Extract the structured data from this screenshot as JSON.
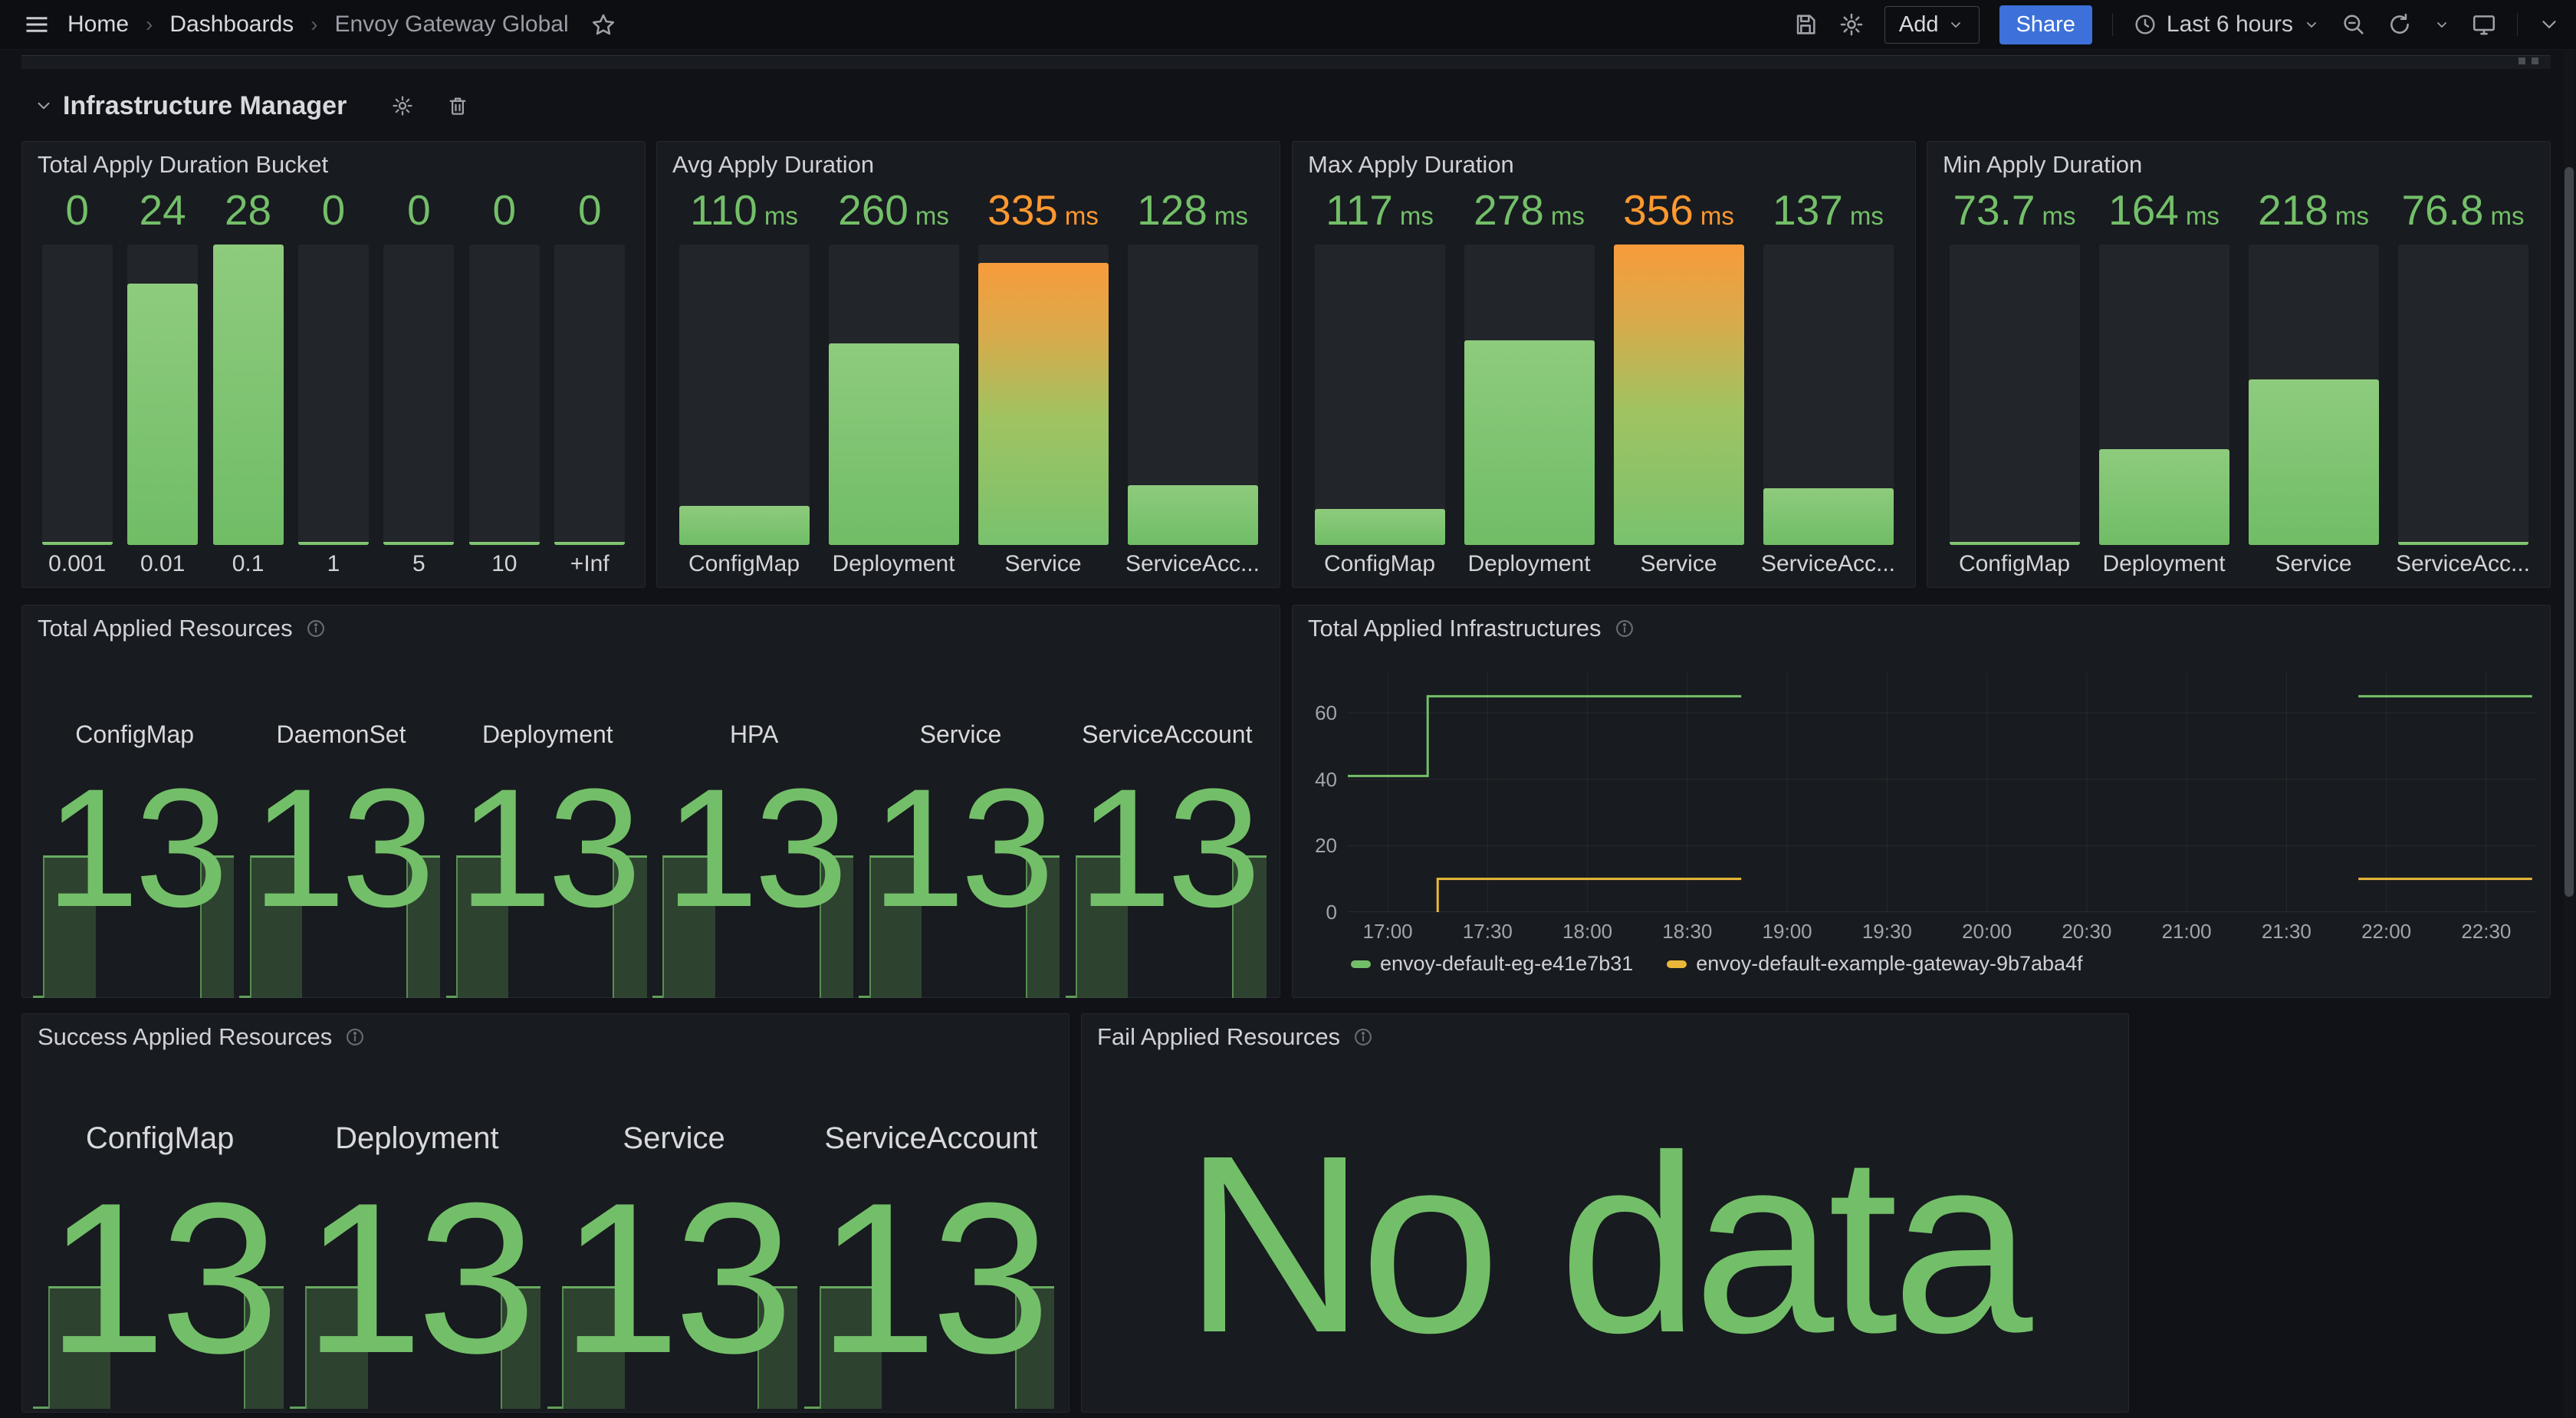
{
  "navbar": {
    "breadcrumb": [
      "Home",
      "Dashboards",
      "Envoy Gateway Global"
    ],
    "actions": {
      "add": "Add",
      "share": "Share",
      "time_range": "Last 6 hours"
    }
  },
  "icons": {
    "menu-icon": "hamburger",
    "star-icon": "star outline",
    "save-icon": "floppy",
    "settings-icon": "gear",
    "clock-icon": "clock",
    "zoom-out-icon": "magnifier-minus",
    "refresh-icon": "circular-arrow",
    "tv-icon": "monitor",
    "caret-down-icon": "chevron",
    "info-icon": "circle-i",
    "trash-icon": "trash can",
    "row-chevron-icon": "chevron-down"
  },
  "colors": {
    "green": "#73bf69",
    "orange": "#ff9830",
    "yellow": "#eab839",
    "blue": "#3d71d9"
  },
  "section": {
    "title": "Infrastructure Manager"
  },
  "panels": {
    "bucket": {
      "title": "Total Apply Duration Bucket",
      "bars": [
        {
          "value": "0",
          "label": "0.001",
          "fill": 0
        },
        {
          "value": "24",
          "label": "0.01",
          "fill": 0.87
        },
        {
          "value": "28",
          "label": "0.1",
          "fill": 1
        },
        {
          "value": "0",
          "label": "1",
          "fill": 0
        },
        {
          "value": "0",
          "label": "5",
          "fill": 0
        },
        {
          "value": "0",
          "label": "10",
          "fill": 0
        },
        {
          "value": "0",
          "label": "+Inf",
          "fill": 0
        }
      ]
    },
    "avg": {
      "title": "Avg Apply Duration",
      "bars": [
        {
          "value": "110",
          "unit": "ms",
          "label": "ConfigMap",
          "fill": 0.13,
          "style": "green",
          "color": "#73bf69"
        },
        {
          "value": "260",
          "unit": "ms",
          "label": "Deployment",
          "fill": 0.67,
          "style": "green",
          "color": "#73bf69"
        },
        {
          "value": "335",
          "unit": "ms",
          "label": "Service",
          "fill": 0.94,
          "style": "orange",
          "color": "#ff9830"
        },
        {
          "value": "128",
          "unit": "ms",
          "label": "ServiceAcc...",
          "fill": 0.2,
          "style": "green",
          "color": "#73bf69"
        }
      ]
    },
    "max": {
      "title": "Max Apply Duration",
      "bars": [
        {
          "value": "117",
          "unit": "ms",
          "label": "ConfigMap",
          "fill": 0.12,
          "style": "green",
          "color": "#73bf69"
        },
        {
          "value": "278",
          "unit": "ms",
          "label": "Deployment",
          "fill": 0.68,
          "style": "green",
          "color": "#73bf69"
        },
        {
          "value": "356",
          "unit": "ms",
          "label": "Service",
          "fill": 1,
          "style": "orange",
          "color": "#ff9830"
        },
        {
          "value": "137",
          "unit": "ms",
          "label": "ServiceAcc...",
          "fill": 0.19,
          "style": "green",
          "color": "#73bf69"
        }
      ]
    },
    "min": {
      "title": "Min Apply Duration",
      "bars": [
        {
          "value": "73.7",
          "unit": "ms",
          "label": "ConfigMap",
          "fill": 0.012,
          "style": "green",
          "color": "#73bf69"
        },
        {
          "value": "164",
          "unit": "ms",
          "label": "Deployment",
          "fill": 0.32,
          "style": "green",
          "color": "#73bf69"
        },
        {
          "value": "218",
          "unit": "ms",
          "label": "Service",
          "fill": 0.55,
          "style": "green",
          "color": "#73bf69"
        },
        {
          "value": "76.8",
          "unit": "ms",
          "label": "ServiceAcc...",
          "fill": 0.012,
          "style": "green",
          "color": "#73bf69"
        }
      ]
    },
    "total_resources": {
      "title": "Total Applied Resources",
      "spark": {
        "baseline": [
          0,
          0.05
        ],
        "segments": [
          [
            0.05,
            0.3
          ],
          [
            0.82,
            0.98
          ]
        ]
      },
      "stats": [
        {
          "label": "ConfigMap",
          "value": "13"
        },
        {
          "label": "DaemonSet",
          "value": "13"
        },
        {
          "label": "Deployment",
          "value": "13"
        },
        {
          "label": "HPA",
          "value": "13"
        },
        {
          "label": "Service",
          "value": "13"
        },
        {
          "label": "ServiceAccount",
          "value": "13"
        }
      ]
    },
    "infra_chart": {
      "title": "Total Applied Infrastructures",
      "chart_data": {
        "type": "line",
        "title": "Total Applied Infrastructures",
        "x_range": [
          16.8,
          22.75
        ],
        "y_range": [
          0,
          72
        ],
        "grid": true,
        "legend_position": "bottom",
        "x_ticks": [
          {
            "v": 17,
            "label": "17:00"
          },
          {
            "v": 17.5,
            "label": "17:30"
          },
          {
            "v": 18,
            "label": "18:00"
          },
          {
            "v": 18.5,
            "label": "18:30"
          },
          {
            "v": 19,
            "label": "19:00"
          },
          {
            "v": 19.5,
            "label": "19:30"
          },
          {
            "v": 20,
            "label": "20:00"
          },
          {
            "v": 20.5,
            "label": "20:30"
          },
          {
            "v": 21,
            "label": "21:00"
          },
          {
            "v": 21.5,
            "label": "21:30"
          },
          {
            "v": 22,
            "label": "22:00"
          },
          {
            "v": 22.5,
            "label": "22:30"
          }
        ],
        "y_ticks": [
          {
            "v": 0,
            "label": "0"
          },
          {
            "v": 20,
            "label": "20"
          },
          {
            "v": 40,
            "label": "40"
          },
          {
            "v": 60,
            "label": "60"
          }
        ],
        "series": [
          {
            "name": "envoy-default-eg-e41e7b31",
            "color": "#73bf69",
            "points": [
              [
                16.8,
                41
              ],
              [
                17.2,
                41
              ],
              [
                17.2,
                65
              ],
              [
                18.77,
                65
              ],
              null,
              [
                21.86,
                65
              ],
              [
                22.73,
                65
              ]
            ]
          },
          {
            "name": "envoy-default-example-gateway-9b7aba4f",
            "color": "#eab839",
            "points": [
              [
                17.25,
                0
              ],
              [
                17.25,
                10
              ],
              [
                18.77,
                10
              ],
              null,
              [
                21.86,
                10
              ],
              [
                22.73,
                10
              ]
            ]
          }
        ]
      }
    },
    "success": {
      "title": "Success Applied Resources",
      "spark": {
        "baseline": [
          0,
          0.06
        ],
        "segments": [
          [
            0.06,
            0.3
          ],
          [
            0.83,
            0.98
          ]
        ]
      },
      "stats": [
        {
          "label": "ConfigMap",
          "value": "13"
        },
        {
          "label": "Deployment",
          "value": "13"
        },
        {
          "label": "Service",
          "value": "13"
        },
        {
          "label": "ServiceAccount",
          "value": "13"
        }
      ]
    },
    "fail": {
      "title": "Fail Applied Resources",
      "message": "No data"
    }
  }
}
